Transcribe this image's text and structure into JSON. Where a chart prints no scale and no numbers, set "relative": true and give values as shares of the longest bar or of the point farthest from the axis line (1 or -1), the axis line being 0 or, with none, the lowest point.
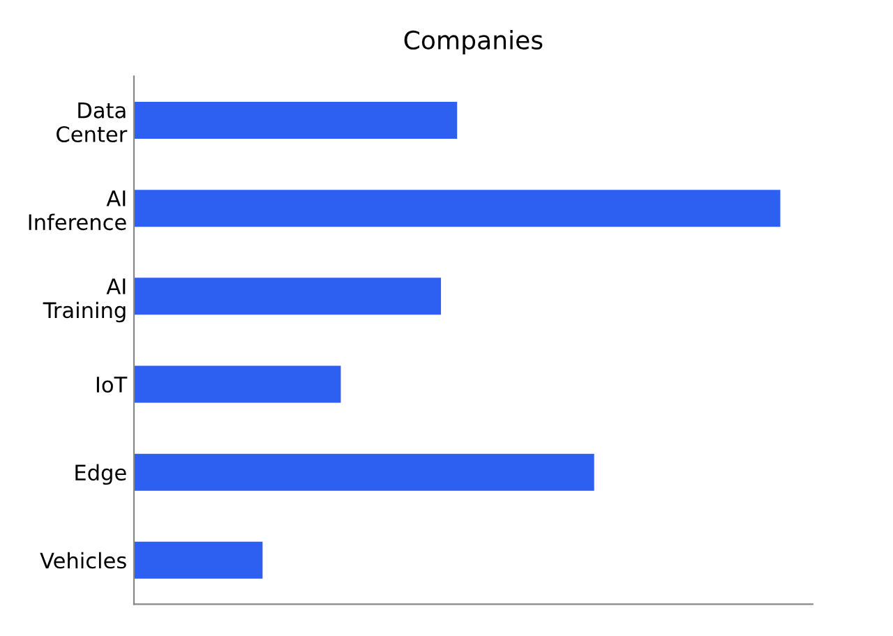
{
  "chart_data": {
    "type": "bar",
    "orientation": "horizontal",
    "relative": true,
    "title": "Companies",
    "categories": [
      "Data\nCenter",
      "AI\nInference",
      "AI\nTraining",
      "IoT",
      "Edge",
      "Vehicles"
    ],
    "values": [
      0.5,
      1,
      0.475,
      0.32,
      0.712,
      0.199
    ],
    "color": "#2d5ff0"
  }
}
